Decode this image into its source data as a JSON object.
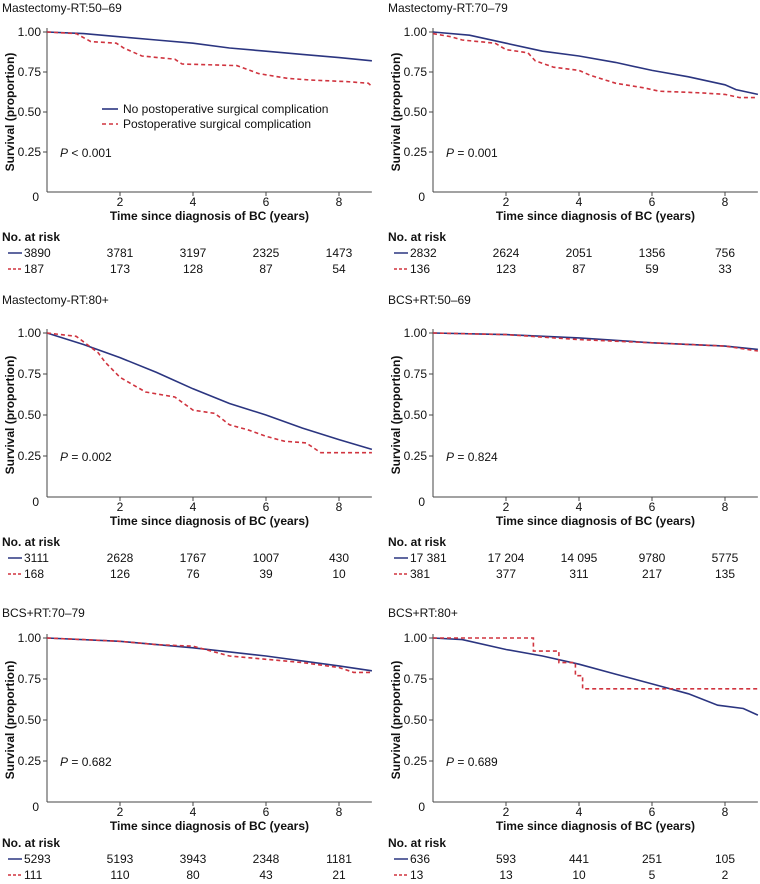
{
  "chart_data": {
    "type": "line",
    "legend": {
      "placement": "center-right of first panel",
      "entries": [
        "No postoperative surgical complication",
        "Postoperative surgical complication"
      ]
    },
    "colors": {
      "no_complication": "#2b3580",
      "complication": "#d0343f"
    },
    "xlabel": "Time since diagnosis of BC (years)",
    "ylabel": "Survival (proportion)",
    "xticks": [
      "0",
      "2",
      "4",
      "6",
      "8"
    ],
    "yticks": [
      "1.00",
      "0.75",
      "0.50",
      "0.25"
    ],
    "xlim": [
      0,
      8.9
    ],
    "ylim": [
      0,
      1
    ],
    "risk_header": "No. at risk",
    "risk_times": [
      0,
      2,
      4,
      6,
      8
    ],
    "panels": [
      {
        "title": "Mastectomy-RT:50–69",
        "p_label": "P",
        "p_value": " < 0.001",
        "series": [
          {
            "name": "No postoperative surgical complication",
            "points": [
              [
                0,
                1
              ],
              [
                1,
                0.99
              ],
              [
                2,
                0.97
              ],
              [
                3,
                0.95
              ],
              [
                4,
                0.93
              ],
              [
                5,
                0.9
              ],
              [
                6,
                0.88
              ],
              [
                7,
                0.86
              ],
              [
                8,
                0.84
              ],
              [
                8.9,
                0.82
              ]
            ]
          },
          {
            "name": "Postoperative surgical complication",
            "points": [
              [
                0,
                1
              ],
              [
                0.8,
                0.99
              ],
              [
                1.2,
                0.94
              ],
              [
                1.9,
                0.93
              ],
              [
                2.1,
                0.9
              ],
              [
                2.6,
                0.85
              ],
              [
                3.5,
                0.83
              ],
              [
                3.7,
                0.8
              ],
              [
                5.2,
                0.79
              ],
              [
                5.8,
                0.74
              ],
              [
                6.6,
                0.71
              ],
              [
                7.2,
                0.7
              ],
              [
                8.2,
                0.69
              ],
              [
                8.8,
                0.68
              ],
              [
                8.9,
                0.66
              ]
            ]
          }
        ],
        "at_risk": [
          [
            "3890",
            "3781",
            "3197",
            "2325",
            "1473"
          ],
          [
            "187",
            "173",
            "128",
            "87",
            "54"
          ]
        ]
      },
      {
        "title": "Mastectomy-RT:70–79",
        "p_label": "P",
        "p_value": " = 0.001",
        "series": [
          {
            "name": "No postoperative surgical complication",
            "points": [
              [
                0,
                1
              ],
              [
                1,
                0.98
              ],
              [
                2,
                0.93
              ],
              [
                3,
                0.88
              ],
              [
                4,
                0.85
              ],
              [
                5,
                0.81
              ],
              [
                6,
                0.76
              ],
              [
                7,
                0.72
              ],
              [
                8,
                0.67
              ],
              [
                8.3,
                0.64
              ],
              [
                8.9,
                0.61
              ]
            ]
          },
          {
            "name": "Postoperative surgical complication",
            "points": [
              [
                0,
                0.99
              ],
              [
                0.5,
                0.97
              ],
              [
                0.8,
                0.95
              ],
              [
                1.7,
                0.93
              ],
              [
                2,
                0.89
              ],
              [
                2.6,
                0.87
              ],
              [
                2.8,
                0.82
              ],
              [
                3.3,
                0.78
              ],
              [
                4,
                0.76
              ],
              [
                4.3,
                0.73
              ],
              [
                5,
                0.68
              ],
              [
                5.8,
                0.65
              ],
              [
                6.2,
                0.63
              ],
              [
                7.3,
                0.62
              ],
              [
                8,
                0.61
              ],
              [
                8.4,
                0.59
              ],
              [
                8.9,
                0.59
              ]
            ]
          }
        ],
        "at_risk": [
          [
            "2832",
            "2624",
            "2051",
            "1356",
            "756"
          ],
          [
            "136",
            "123",
            "87",
            "59",
            "33"
          ]
        ]
      },
      {
        "title": "Mastectomy-RT:80+",
        "p_label": "P",
        "p_value": " = 0.002",
        "series": [
          {
            "name": "No postoperative surgical complication",
            "points": [
              [
                0,
                1
              ],
              [
                1,
                0.93
              ],
              [
                2,
                0.85
              ],
              [
                3,
                0.76
              ],
              [
                4,
                0.66
              ],
              [
                5,
                0.57
              ],
              [
                6,
                0.5
              ],
              [
                7,
                0.42
              ],
              [
                8,
                0.35
              ],
              [
                8.9,
                0.29
              ]
            ]
          },
          {
            "name": "Postoperative surgical complication",
            "points": [
              [
                0,
                1
              ],
              [
                0.8,
                0.98
              ],
              [
                1.4,
                0.88
              ],
              [
                1.6,
                0.82
              ],
              [
                2,
                0.73
              ],
              [
                2.7,
                0.64
              ],
              [
                3.5,
                0.61
              ],
              [
                4,
                0.53
              ],
              [
                4.6,
                0.51
              ],
              [
                5,
                0.44
              ],
              [
                5.5,
                0.41
              ],
              [
                6,
                0.37
              ],
              [
                6.5,
                0.34
              ],
              [
                7.1,
                0.33
              ],
              [
                7.5,
                0.27
              ],
              [
                8.9,
                0.27
              ]
            ]
          }
        ],
        "at_risk": [
          [
            "3111",
            "2628",
            "1767",
            "1007",
            "430"
          ],
          [
            "168",
            "126",
            "76",
            "39",
            "10"
          ]
        ]
      },
      {
        "title": "BCS+RT:50–69",
        "p_label": "P",
        "p_value": " = 0.824",
        "series": [
          {
            "name": "No postoperative surgical complication",
            "points": [
              [
                0,
                1
              ],
              [
                2,
                0.99
              ],
              [
                4,
                0.97
              ],
              [
                6,
                0.94
              ],
              [
                8,
                0.92
              ],
              [
                8.9,
                0.9
              ]
            ]
          },
          {
            "name": "Postoperative surgical complication",
            "points": [
              [
                0,
                1
              ],
              [
                2,
                0.99
              ],
              [
                4,
                0.96
              ],
              [
                6,
                0.94
              ],
              [
                8,
                0.92
              ],
              [
                8.9,
                0.89
              ]
            ]
          }
        ],
        "at_risk": [
          [
            "17 381",
            "17 204",
            "14 095",
            "9780",
            "5775"
          ],
          [
            "381",
            "377",
            "311",
            "217",
            "135"
          ]
        ]
      },
      {
        "title": "BCS+RT:70–79",
        "p_label": "P",
        "p_value": " = 0.682",
        "series": [
          {
            "name": "No postoperative surgical complication",
            "points": [
              [
                0,
                1
              ],
              [
                2,
                0.98
              ],
              [
                4,
                0.94
              ],
              [
                6,
                0.89
              ],
              [
                8,
                0.83
              ],
              [
                8.9,
                0.8
              ]
            ]
          },
          {
            "name": "Postoperative surgical complication",
            "points": [
              [
                0,
                1
              ],
              [
                1,
                0.99
              ],
              [
                2,
                0.98
              ],
              [
                3,
                0.96
              ],
              [
                4,
                0.95
              ],
              [
                5,
                0.89
              ],
              [
                6,
                0.87
              ],
              [
                7,
                0.85
              ],
              [
                8,
                0.82
              ],
              [
                8.4,
                0.79
              ],
              [
                8.9,
                0.79
              ]
            ]
          }
        ],
        "at_risk": [
          [
            "5293",
            "5193",
            "3943",
            "2348",
            "1181"
          ],
          [
            "111",
            "110",
            "80",
            "43",
            "21"
          ]
        ]
      },
      {
        "title": "BCS+RT:80+",
        "p_label": "P",
        "p_value": " = 0.689",
        "series": [
          {
            "name": "No postoperative surgical complication",
            "points": [
              [
                0,
                1
              ],
              [
                0.8,
                0.99
              ],
              [
                2,
                0.93
              ],
              [
                3,
                0.89
              ],
              [
                4,
                0.84
              ],
              [
                5,
                0.78
              ],
              [
                6,
                0.72
              ],
              [
                7,
                0.66
              ],
              [
                7.8,
                0.59
              ],
              [
                8.5,
                0.57
              ],
              [
                8.9,
                0.53
              ]
            ]
          },
          {
            "name": "Postoperative surgical complication",
            "points": [
              [
                0,
                1
              ],
              [
                2.75,
                1
              ],
              [
                2.75,
                0.92
              ],
              [
                3.45,
                0.92
              ],
              [
                3.45,
                0.85
              ],
              [
                3.9,
                0.85
              ],
              [
                3.9,
                0.77
              ],
              [
                4.1,
                0.77
              ],
              [
                4.1,
                0.69
              ],
              [
                8.9,
                0.69
              ]
            ]
          }
        ],
        "at_risk": [
          [
            "636",
            "593",
            "441",
            "251",
            "105"
          ],
          [
            "13",
            "13",
            "10",
            "5",
            "2"
          ]
        ]
      }
    ]
  }
}
